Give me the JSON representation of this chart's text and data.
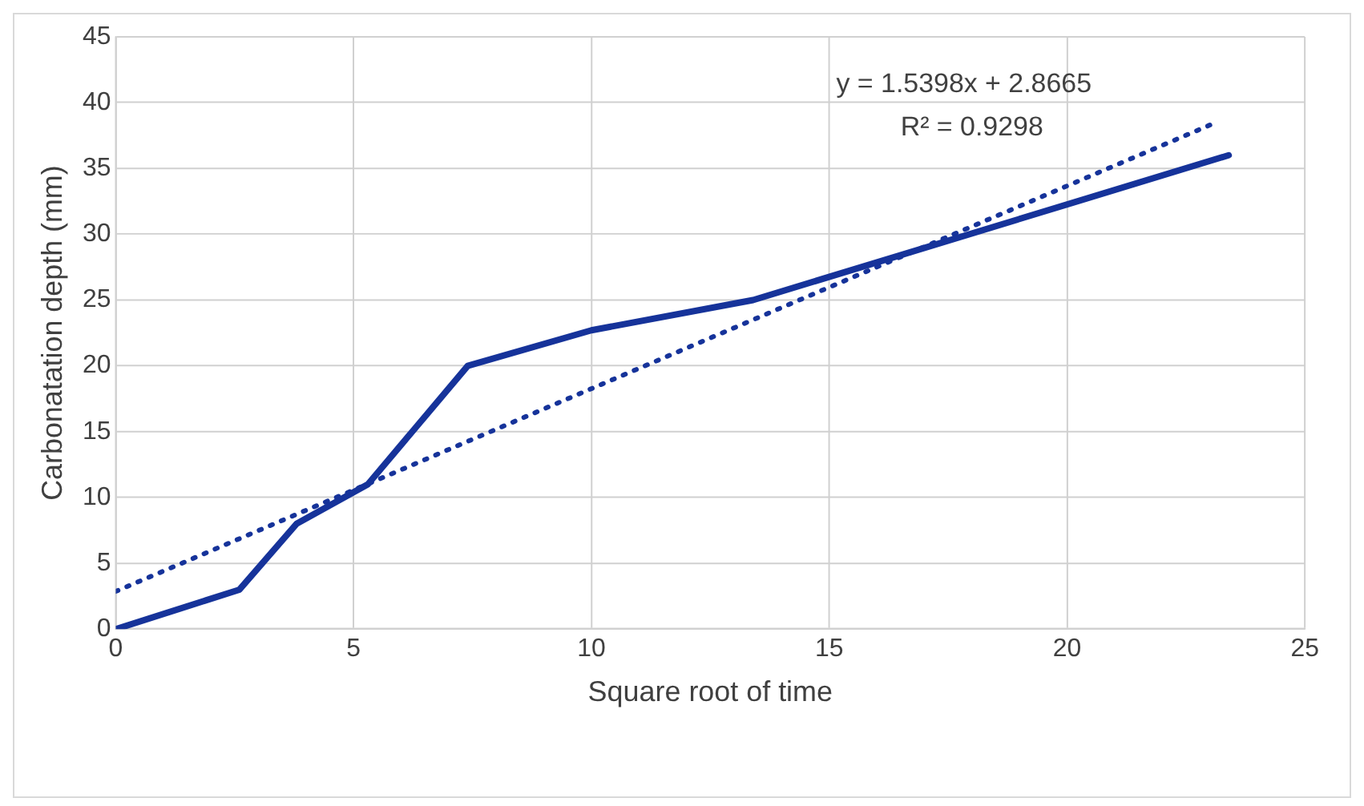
{
  "chart_data": {
    "type": "line",
    "xlabel": "Square root of time",
    "ylabel": "Carbonatation depth (mm)",
    "xlim": [
      0,
      25
    ],
    "xticks": [
      0,
      5,
      10,
      15,
      20,
      25
    ],
    "ylim": [
      0,
      45
    ],
    "yticks": [
      0,
      5,
      10,
      15,
      20,
      25,
      30,
      35,
      40,
      45
    ],
    "grid": true,
    "marker": "none",
    "series": [
      {
        "color": "#16339a",
        "line_style": "solid",
        "x": [
          0,
          2.6,
          3.8,
          5.3,
          7.4,
          10,
          13.4,
          23.4
        ],
        "values": [
          0,
          3,
          8,
          11,
          20,
          22.7,
          25,
          36
        ]
      },
      {
        "type": "line",
        "color": "#16339a",
        "line_style": "dotted",
        "x": [
          0,
          23.1
        ],
        "values": [
          2.87,
          38.44
        ]
      }
    ],
    "annotations": [
      "y = 1.5398x + 2.8665",
      "R² = 0.9298"
    ]
  }
}
